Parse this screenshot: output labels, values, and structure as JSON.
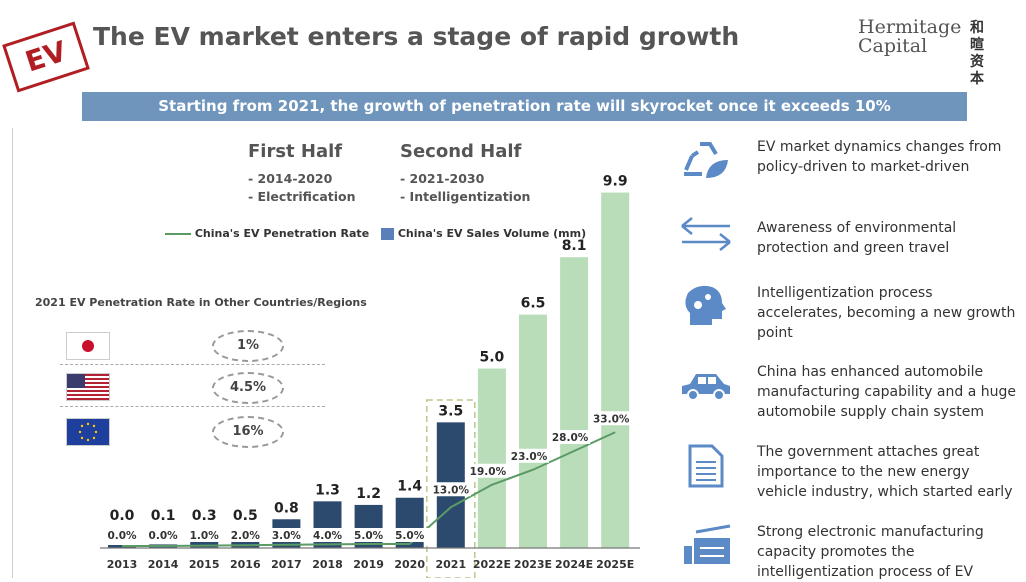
{
  "header": {
    "stamp": "EV",
    "title": "The EV market enters a stage of rapid growth",
    "logo_en_line1": "Hermitage",
    "logo_en_line2": "Capital",
    "logo_cn_line1": "和暄",
    "logo_cn_line2": "资本"
  },
  "banner": "Starting from 2021, the growth of penetration rate will skyrocket once it exceeds 10%",
  "phases": [
    {
      "title": "First Half",
      "lines": [
        "- 2014-2020",
        "- Electrification"
      ]
    },
    {
      "title": "Second Half",
      "lines": [
        "- 2021-2030",
        "- Intelligentization"
      ]
    }
  ],
  "other_regions": {
    "title": "2021 EV Penetration Rate in Other Countries/Regions",
    "rows": [
      {
        "flag": "japan-flag",
        "value": "1%"
      },
      {
        "flag": "usa-flag",
        "value": "4.5%"
      },
      {
        "flag": "eu-flag",
        "value": "16%"
      }
    ]
  },
  "chart_data": {
    "type": "bar",
    "categories": [
      "2013",
      "2014",
      "2015",
      "2016",
      "2017",
      "2018",
      "2019",
      "2020",
      "2021",
      "2022E",
      "2023E",
      "2024E",
      "2025E"
    ],
    "series": [
      {
        "name": "China's EV Sales Volume (mm)",
        "type": "bar",
        "values": [
          0.0,
          0.1,
          0.3,
          0.5,
          0.8,
          1.3,
          1.2,
          1.4,
          3.5,
          5.0,
          6.5,
          8.1,
          9.9
        ],
        "labels": [
          "0.0",
          "0.1",
          "0.3",
          "0.5",
          "0.8",
          "1.3",
          "1.2",
          "1.4",
          "3.5",
          "5.0",
          "6.5",
          "8.1",
          "9.9"
        ],
        "color": "#2c4a6e",
        "forecast_color": "#b9dcb9"
      },
      {
        "name": "China's EV Penetration Rate",
        "type": "line",
        "values": [
          0.0,
          0.0,
          1.0,
          2.0,
          3.0,
          4.0,
          5.0,
          5.0,
          13.0,
          19.0,
          23.0,
          28.0,
          33.0
        ],
        "labels": [
          "0.0%",
          "0.0%",
          "1.0%",
          "2.0%",
          "3.0%",
          "4.0%",
          "5.0%",
          "5.0%",
          "13.0%",
          "19.0%",
          "23.0%",
          "28.0%",
          "33.0%"
        ],
        "color": "#5a9a63"
      }
    ],
    "highlight_category": "2021",
    "legend_position": "top",
    "grid": false
  },
  "drivers": [
    {
      "icon": "recycle-leaf-icon",
      "text": "EV market dynamics changes from policy-driven to market-driven"
    },
    {
      "icon": "exchange-arrows-icon",
      "text": "Awareness of environmental protection and green travel"
    },
    {
      "icon": "head-gears-icon",
      "text": "Intelligentization process accelerates, becoming a new growth point"
    },
    {
      "icon": "car-icon",
      "text": "China has enhanced automobile manufacturing capability and a huge automobile supply chain system"
    },
    {
      "icon": "document-icon",
      "text": "The government attaches great importance to the new energy vehicle industry, which started early"
    },
    {
      "icon": "factory-machine-icon",
      "text": "Strong electronic manufacturing capacity promotes the intelligentization process of EV"
    }
  ],
  "colors": {
    "accent": "#6f95bd",
    "stamp": "#b01e23",
    "icon": "#5b8ac6"
  }
}
